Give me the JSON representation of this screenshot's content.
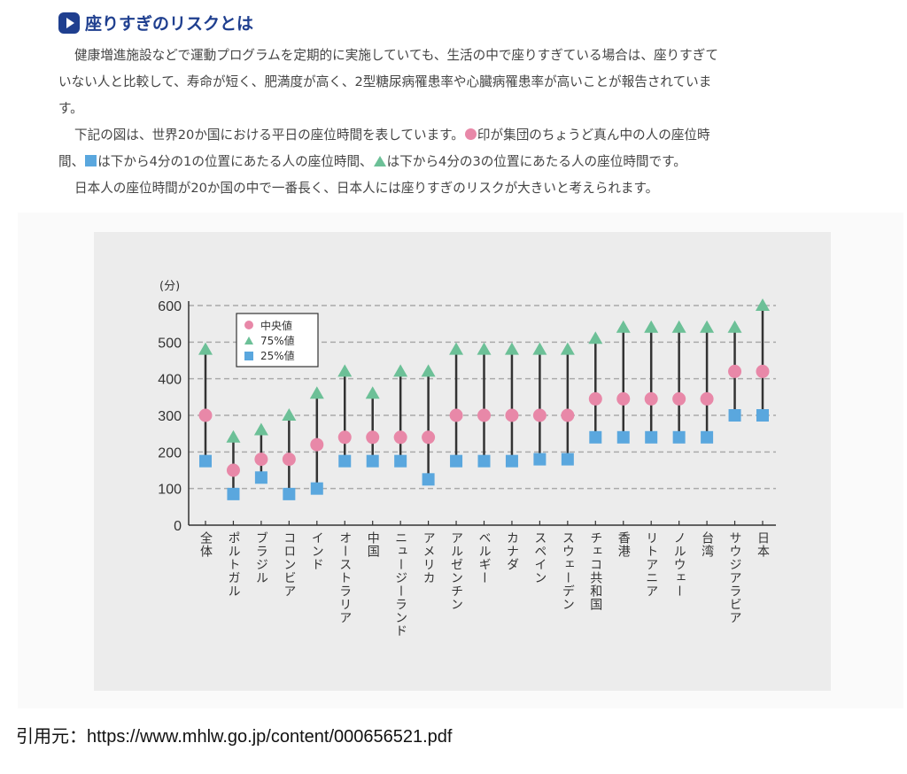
{
  "heading": "座りすぎのリスクとは",
  "paragraphs": {
    "p1": [
      "健康増進施設などで運動プログラムを定期的に実施していても、生活の中で座りすぎている場合は、座りすぎて",
      "いない人と比較して、寿命が短く、肥満度が高く、2型糖尿病罹患率や心臓病罹患率が高いことが報告されていま",
      "す。"
    ],
    "p2a": "下記の図は、世界20か国における平日の座位時間を表しています。",
    "p2b": "印が集団のちょうど真ん中の人の座位時",
    "p2c": "間、",
    "p2d": "は下から4分の1の位置にあたる人の座位時間、",
    "p2e": "は下から4分の3の位置にあたる人の座位時間です。",
    "p3": "日本人の座位時間が20か国の中で一番長く、日本人には座りすぎのリスクが大きいと考えられます。"
  },
  "citation": "引用元：https://www.mhlw.go.jp/content/000656521.pdf",
  "colors": {
    "median": "#e888a8",
    "p75": "#6cc097",
    "p25": "#5aa7de"
  },
  "chart_data": {
    "type": "scatter",
    "title": "",
    "ylabel": "(分)",
    "ylim": [
      0,
      600
    ],
    "yticks": [
      0,
      100,
      200,
      300,
      400,
      500,
      600
    ],
    "grid": true,
    "legend_position": "top-left",
    "categories": [
      "全体",
      "ポルトガル",
      "ブラジル",
      "コロンビア",
      "インド",
      "オーストラリア",
      "中国",
      "ニュージーランド",
      "アメリカ",
      "アルゼンチン",
      "ベルギー",
      "カナダ",
      "スペイン",
      "スウェーデン",
      "チェコ共和国",
      "香港",
      "リトアニア",
      "ノルウェー",
      "台湾",
      "サウジアラビア",
      "日本"
    ],
    "series": [
      {
        "name": "中央値",
        "marker": "circle",
        "values": [
          300,
          150,
          180,
          180,
          220,
          240,
          240,
          240,
          240,
          300,
          300,
          300,
          300,
          300,
          345,
          345,
          345,
          345,
          345,
          420,
          420
        ]
      },
      {
        "name": "75%値",
        "marker": "triangle",
        "values": [
          480,
          240,
          260,
          300,
          360,
          420,
          360,
          420,
          420,
          480,
          480,
          480,
          480,
          480,
          510,
          540,
          540,
          540,
          540,
          540,
          600
        ]
      },
      {
        "name": "25%値",
        "marker": "square",
        "values": [
          175,
          85,
          130,
          85,
          100,
          175,
          175,
          175,
          125,
          175,
          175,
          175,
          180,
          180,
          240,
          240,
          240,
          240,
          240,
          300,
          300
        ]
      }
    ]
  }
}
